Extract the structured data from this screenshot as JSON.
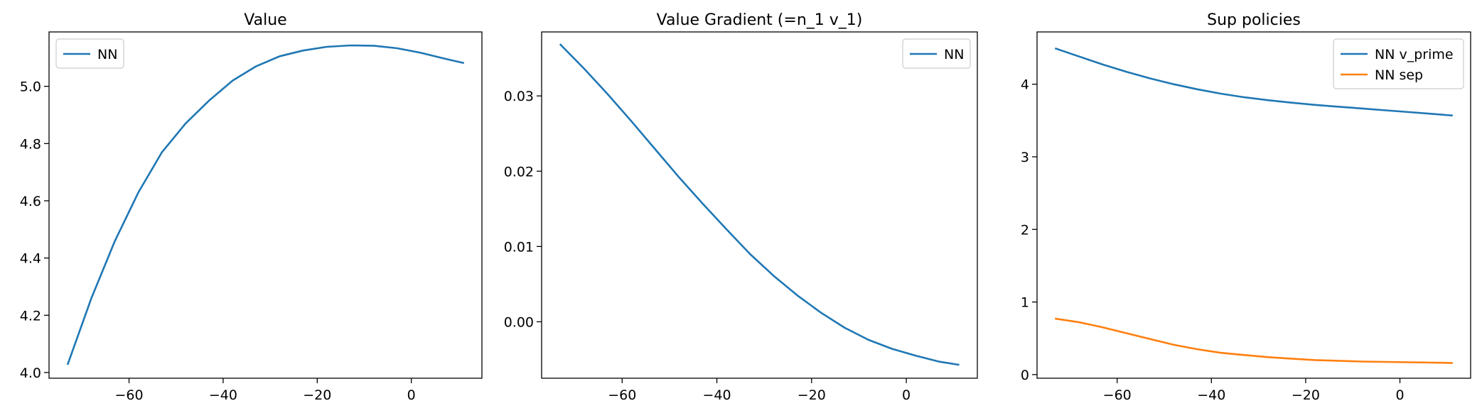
{
  "chart_data": [
    {
      "type": "line",
      "title": "Value",
      "xlabel": "",
      "ylabel": "",
      "xlim": [
        -77,
        15
      ],
      "ylim": [
        3.98,
        5.19
      ],
      "xticks": [
        -60,
        -40,
        -20,
        0
      ],
      "xtick_labels": [
        "−60",
        "−40",
        "−20",
        "0"
      ],
      "yticks": [
        4.0,
        4.2,
        4.4,
        4.6,
        4.8,
        5.0
      ],
      "ytick_labels": [
        "4.0",
        "4.2",
        "4.4",
        "4.6",
        "4.8",
        "5.0"
      ],
      "legend": "top-left",
      "grid": false,
      "series": [
        {
          "name": "NN",
          "color": "#1f77b4",
          "x": [
            -73,
            -68,
            -63,
            -58,
            -53,
            -48,
            -43,
            -38,
            -33,
            -28,
            -23,
            -18,
            -13,
            -8,
            -3,
            2,
            7,
            11
          ],
          "y": [
            4.03,
            4.26,
            4.46,
            4.63,
            4.77,
            4.87,
            4.95,
            5.02,
            5.07,
            5.105,
            5.125,
            5.138,
            5.143,
            5.142,
            5.133,
            5.117,
            5.097,
            5.082
          ]
        }
      ]
    },
    {
      "type": "line",
      "title": "Value Gradient (=n_1 v_1)",
      "xlabel": "",
      "ylabel": "",
      "xlim": [
        -77,
        15
      ],
      "ylim": [
        -0.0075,
        0.0385
      ],
      "xticks": [
        -60,
        -40,
        -20,
        0
      ],
      "xtick_labels": [
        "−60",
        "−40",
        "−20",
        "0"
      ],
      "yticks": [
        0.0,
        0.01,
        0.02,
        0.03
      ],
      "ytick_labels": [
        "0.00",
        "0.01",
        "0.02",
        "0.03"
      ],
      "legend": "top-right",
      "grid": false,
      "series": [
        {
          "name": "NN",
          "color": "#1f77b4",
          "x": [
            -73,
            -68,
            -63,
            -58,
            -53,
            -48,
            -43,
            -38,
            -33,
            -28,
            -23,
            -18,
            -13,
            -8,
            -3,
            2,
            7,
            11
          ],
          "y": [
            0.0368,
            0.0336,
            0.0302,
            0.0266,
            0.0229,
            0.0192,
            0.0157,
            0.0123,
            0.009,
            0.0061,
            0.0035,
            0.0012,
            -0.0008,
            -0.0024,
            -0.0036,
            -0.0045,
            -0.0053,
            -0.0057
          ]
        }
      ]
    },
    {
      "type": "line",
      "title": "Sup policies",
      "xlabel": "",
      "ylabel": "",
      "xlim": [
        -77,
        15
      ],
      "ylim": [
        -0.05,
        4.72
      ],
      "xticks": [
        -60,
        -40,
        -20,
        0
      ],
      "xtick_labels": [
        "−60",
        "−40",
        "−20",
        "0"
      ],
      "yticks": [
        0,
        1,
        2,
        3,
        4
      ],
      "ytick_labels": [
        "0",
        "1",
        "2",
        "3",
        "4"
      ],
      "legend": "top-right",
      "grid": false,
      "series": [
        {
          "name": "NN v_prime",
          "color": "#1f77b4",
          "x": [
            -73,
            -68,
            -63,
            -58,
            -53,
            -48,
            -43,
            -38,
            -33,
            -28,
            -23,
            -18,
            -13,
            -8,
            -3,
            2,
            7,
            11
          ],
          "y": [
            4.49,
            4.38,
            4.27,
            4.17,
            4.08,
            4.0,
            3.93,
            3.87,
            3.82,
            3.78,
            3.745,
            3.715,
            3.69,
            3.665,
            3.64,
            3.615,
            3.59,
            3.57
          ]
        },
        {
          "name": "NN sep",
          "color": "#ff7f0e",
          "x": [
            -73,
            -68,
            -63,
            -58,
            -53,
            -48,
            -43,
            -38,
            -33,
            -28,
            -23,
            -18,
            -13,
            -8,
            -3,
            2,
            7,
            11
          ],
          "y": [
            0.77,
            0.72,
            0.65,
            0.57,
            0.49,
            0.41,
            0.35,
            0.3,
            0.27,
            0.24,
            0.22,
            0.2,
            0.19,
            0.18,
            0.175,
            0.17,
            0.165,
            0.16
          ]
        }
      ]
    }
  ]
}
